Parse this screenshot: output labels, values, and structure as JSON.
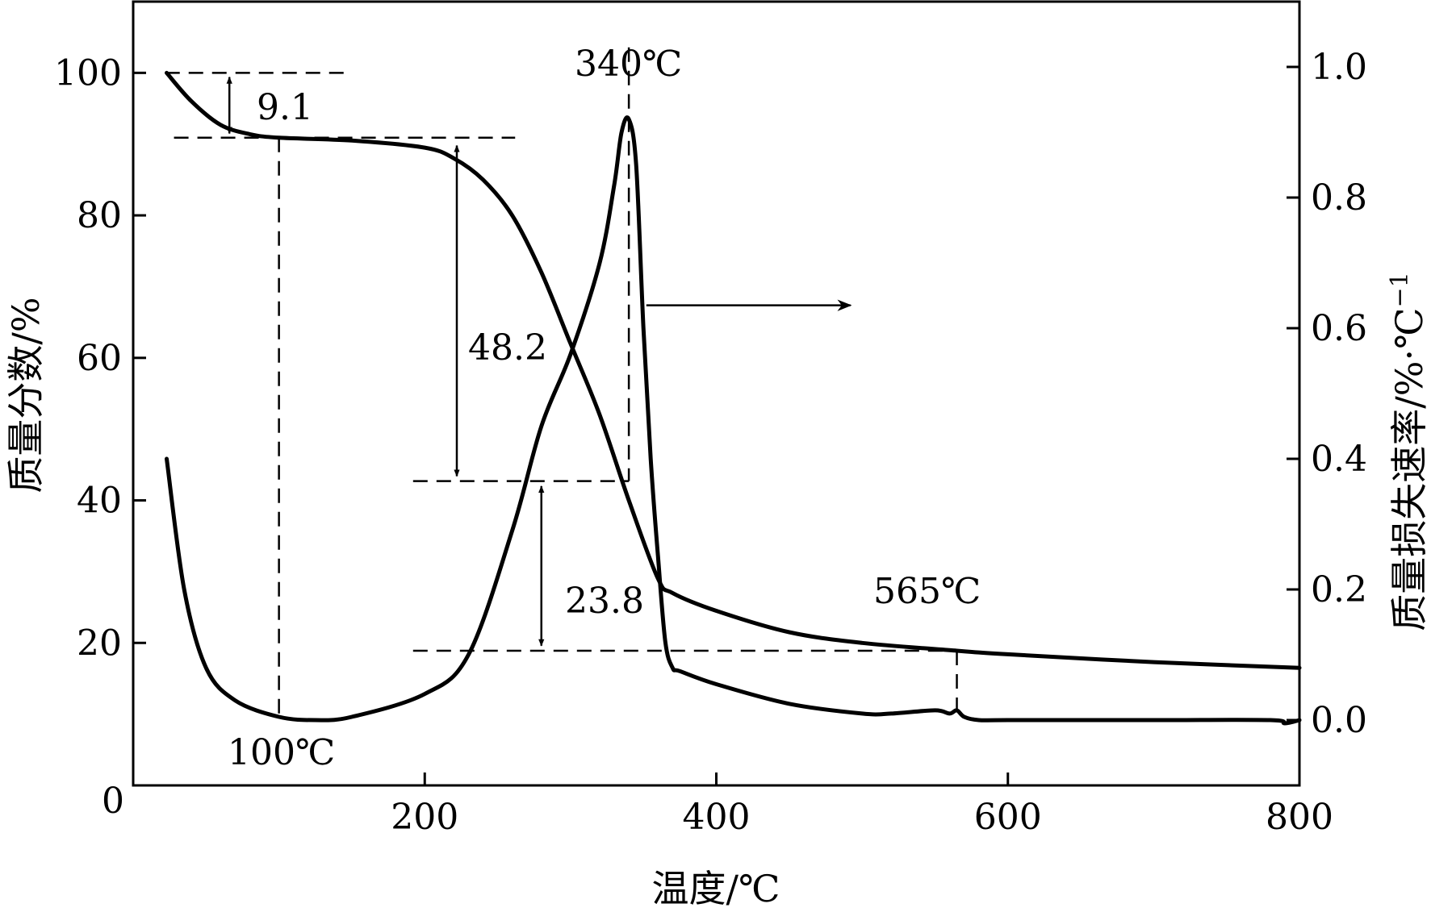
{
  "chart_data": {
    "type": "line",
    "xlabel": "温度/℃",
    "ylabel_left": "质量分数/%",
    "ylabel_right": "质量损失速率/%·℃",
    "ylabel_right_sup": "−1",
    "xlim": [
      0,
      800
    ],
    "ylim_left": [
      0,
      110
    ],
    "ylim_right": [
      -0.1,
      1.1
    ],
    "x_ticks": [
      "200",
      "400",
      "600",
      "800"
    ],
    "origin_label": "0",
    "y_ticks_left": [
      "20",
      "40",
      "60",
      "80",
      "100"
    ],
    "y_ticks_right": [
      "0.0",
      "0.2",
      "0.4",
      "0.6",
      "0.8",
      "1.0"
    ],
    "series": [
      {
        "axis": "left",
        "x": [
          23,
          40,
          60,
          80,
          100,
          150,
          200,
          220,
          240,
          260,
          280,
          300,
          320,
          340,
          360,
          370,
          400,
          450,
          500,
          565,
          600,
          700,
          800
        ],
        "y": [
          100,
          96,
          92.7,
          91.4,
          90.9,
          90.5,
          89.5,
          88,
          85,
          80,
          72,
          62,
          52,
          40,
          29,
          27,
          24.5,
          21.5,
          20,
          18.9,
          18.4,
          17.3,
          16.5
        ]
      },
      {
        "axis": "right",
        "x": [
          23,
          35,
          50,
          70,
          100,
          125,
          150,
          200,
          230,
          260,
          280,
          300,
          320,
          330,
          335,
          340,
          345,
          350,
          355,
          360,
          365,
          370,
          375,
          400,
          450,
          500,
          520,
          550,
          560,
          565,
          570,
          580,
          600,
          700,
          780,
          790,
          800
        ],
        "y": [
          0.4,
          0.2,
          0.08,
          0.03,
          0.005,
          0.0,
          0.005,
          0.04,
          0.1,
          0.29,
          0.45,
          0.56,
          0.7,
          0.82,
          0.9,
          0.92,
          0.85,
          0.6,
          0.4,
          0.25,
          0.12,
          0.08,
          0.075,
          0.055,
          0.025,
          0.01,
          0.01,
          0.015,
          0.01,
          0.015,
          0.005,
          0.0,
          0.0,
          0.0,
          0.0,
          -0.005,
          0.0
        ]
      }
    ],
    "annotations": {
      "step1": "9.1",
      "step2": "48.2",
      "step3": "23.8",
      "min_temp": "100℃",
      "peak_temp": "340℃",
      "end_temp": "565℃"
    }
  }
}
